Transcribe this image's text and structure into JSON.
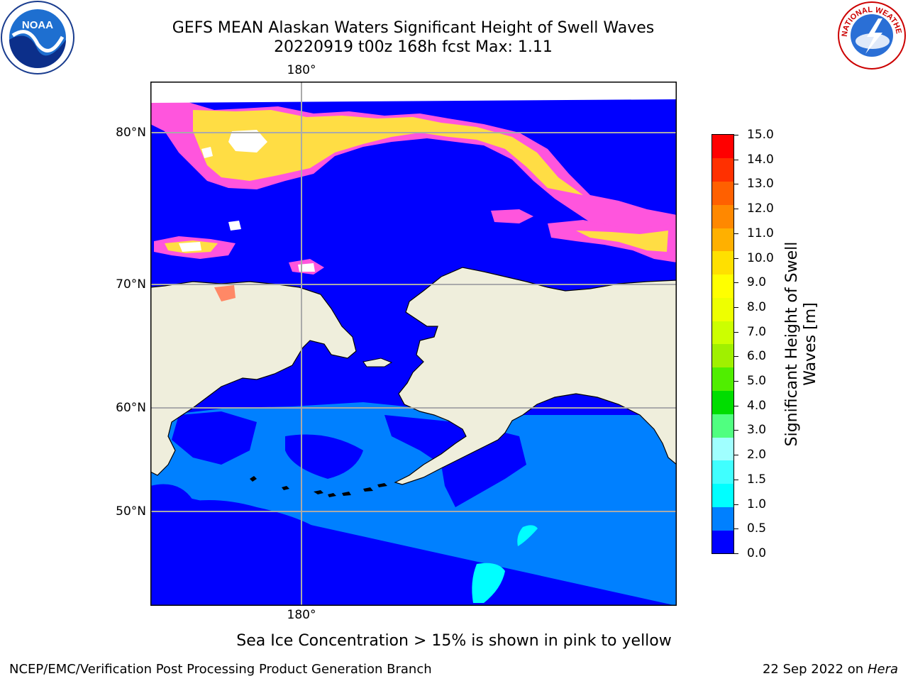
{
  "title": {
    "line1": "GEFS MEAN Alaskan Waters Significant Height of Swell Waves",
    "line2": "20220919 t00z 168h fcst   Max: 1.11"
  },
  "logos": {
    "left_text": "NOAA",
    "right_text": "NATIONAL WEATHER SERVICE"
  },
  "map": {
    "lat_labels": [
      "80°N",
      "70°N",
      "60°N",
      "50°N"
    ],
    "lon_label_top": "180°",
    "lon_label_bottom": "180°"
  },
  "colorbar": {
    "title": "Significant Height of Swell Waves [m]",
    "ticks": [
      "15.0",
      "14.0",
      "13.0",
      "12.0",
      "11.0",
      "10.0",
      "9.0",
      "8.0",
      "7.0",
      "6.0",
      "5.0",
      "4.0",
      "3.0",
      "2.0",
      "1.5",
      "1.0",
      "0.5",
      "0.0"
    ],
    "colors": [
      "#0000ff",
      "#0080ff",
      "#00ffff",
      "#40ffff",
      "#a0ffff",
      "#50ff80",
      "#00dd00",
      "#50ee00",
      "#a0f000",
      "#ccff00",
      "#eeff00",
      "#ffff00",
      "#ffe000",
      "#ffb000",
      "#ff8800",
      "#ff6000",
      "#ff3000",
      "#ff0000"
    ]
  },
  "colors": {
    "land": "#efeedc",
    "deep_swell": "#0000ff",
    "mid_swell": "#0080ff",
    "light_swell": "#00ffff",
    "ice_pink": "#ff55dd",
    "ice_yellow": "#ffdd44",
    "grid": "#aaaaaa"
  },
  "footer": {
    "note": "Sea Ice Concentration > 15% is shown in pink to yellow",
    "credit_left": "NCEP/EMC/Verification Post Processing Product Generation Branch",
    "date": "22 Sep 2022 on",
    "machine": "Hera"
  }
}
